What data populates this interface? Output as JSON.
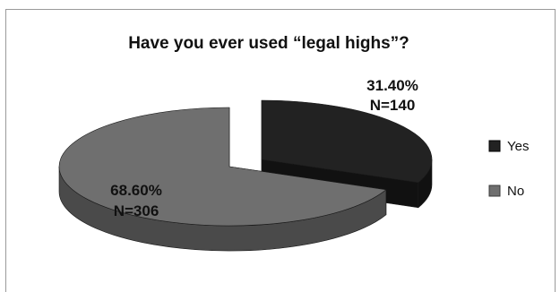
{
  "chart_data": {
    "type": "pie",
    "title": "Have you ever used “legal highs”?",
    "series": [
      {
        "name": "Yes",
        "percent_label": "31.40%",
        "n_label": "N=140",
        "value": 140,
        "percent": 31.4,
        "color": "#222222",
        "side_color": "#111111"
      },
      {
        "name": "No",
        "percent_label": "68.60%",
        "n_label": "N=306",
        "value": 306,
        "percent": 68.6,
        "color": "#6f6f6f",
        "side_color": "#4a4a4a"
      }
    ],
    "legend_position": "right",
    "exploded": true,
    "three_d": true
  }
}
